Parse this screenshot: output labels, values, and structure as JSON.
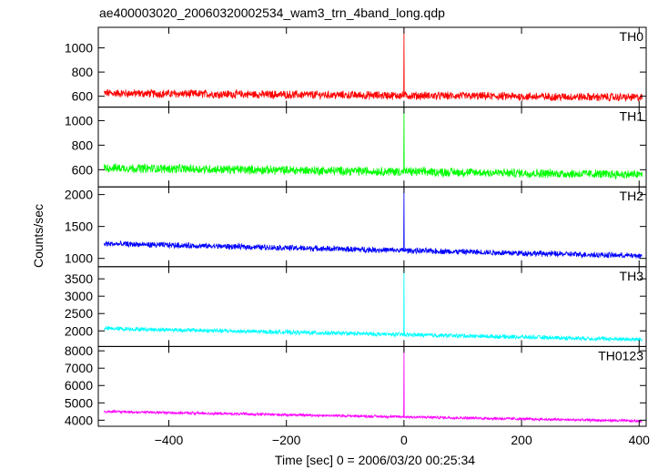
{
  "chart_data": {
    "type": "line",
    "title": "ae400003020_20060320002534_wam3_trn_4band_long.qdp",
    "xlabel": "Time [sec] 0 = 2006/03/20 00:25:34",
    "ylabel": "Counts/sec",
    "xlim": [
      -520,
      412
    ],
    "xticks": [
      -400,
      -200,
      0,
      200,
      400
    ],
    "grid": false,
    "panels": [
      {
        "name": "TH0",
        "color": "#ff0000",
        "ylim": [
          510,
          1170
        ],
        "yticks": [
          600,
          800,
          1000
        ],
        "baseline_start": 625,
        "baseline_end": 590,
        "noise": 30,
        "peak": 1170
      },
      {
        "name": "TH1",
        "color": "#00ff00",
        "ylim": [
          460,
          1110
        ],
        "yticks": [
          600,
          800,
          1000
        ],
        "baseline_start": 615,
        "baseline_end": 560,
        "noise": 32,
        "peak": 1110
      },
      {
        "name": "TH2",
        "color": "#0000ff",
        "ylim": [
          870,
          2120
        ],
        "yticks": [
          1000,
          1500,
          2000
        ],
        "baseline_start": 1230,
        "baseline_end": 1040,
        "noise": 40,
        "peak": 2120
      },
      {
        "name": "TH3",
        "color": "#00ffff",
        "ylim": [
          1550,
          3850
        ],
        "yticks": [
          2000,
          2500,
          3000,
          3500
        ],
        "baseline_start": 2070,
        "baseline_end": 1750,
        "noise": 55,
        "peak": 3850
      },
      {
        "name": "TH0123",
        "color": "#ff00ff",
        "ylim": [
          3650,
          8250
        ],
        "yticks": [
          4000,
          5000,
          6000,
          7000,
          8000
        ],
        "baseline_start": 4500,
        "baseline_end": 3950,
        "noise": 70,
        "peak": 8250
      }
    ]
  }
}
